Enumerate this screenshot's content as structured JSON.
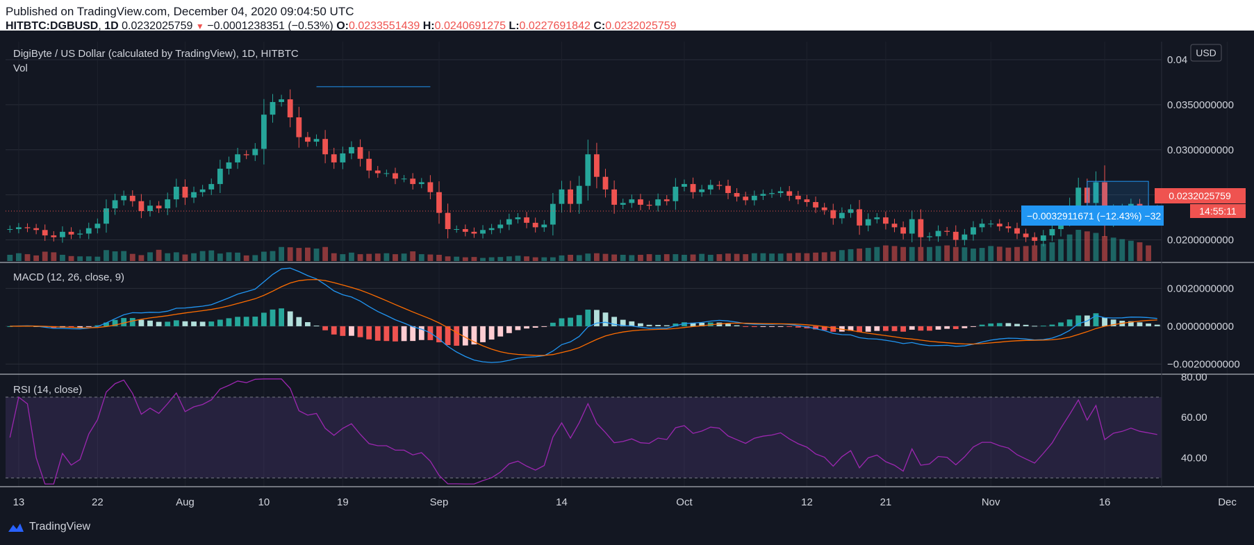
{
  "header": {
    "published": "Published on TradingView.com, December 04, 2020 09:04:50 UTC",
    "symbol": "HITBTC:DGBUSD",
    "interval": "1D",
    "price": "0.0232025759",
    "change": "−0.0001238351 (−0.53%)",
    "o_label": "O:",
    "o": "0.0233551439",
    "h_label": "H:",
    "h": "0.0240691275",
    "l_label": "L:",
    "l": "0.0227691842",
    "c_label": "C:",
    "c": "0.0232025759"
  },
  "main": {
    "title": "DigiByte / US Dollar (calculated by TradingView), 1D, HITBTC",
    "vol_label": "Vol",
    "currency": "USD",
    "last_price_tag": "0.0232025759",
    "countdown_tag": "14:55:11",
    "measure_label": "−0.0032911671 (−12.43%) −32"
  },
  "macd": {
    "label": "MACD (12, 26, close, 9)"
  },
  "rsi": {
    "label": "RSI (14, close)"
  },
  "footer": {
    "brand": "TradingView"
  },
  "colors": {
    "up": "#26a69a",
    "down": "#ef5350",
    "macd": "#2196f3",
    "signal": "#ff6d00",
    "rsi": "#9c27b0",
    "accent": "#2962ff"
  },
  "chart_data": [
    {
      "type": "candlestick",
      "title": "DigiByte / US Dollar (calculated by TradingView), 1D, HITBTC",
      "x_tick_labels": [
        "13",
        "22",
        "Aug",
        "10",
        "19",
        "Sep",
        "14",
        "Oct",
        "12",
        "21",
        "Nov",
        "16",
        "Dec"
      ],
      "y_tick_labels": [
        "0.04",
        "0.0350000000",
        "0.0300000000",
        "0.0250000000",
        "0.0200000000"
      ],
      "ylim": [
        0.0175,
        0.042
      ],
      "close": [
        0.0212,
        0.0214,
        0.0213,
        0.0211,
        0.0205,
        0.0203,
        0.0209,
        0.0206,
        0.0207,
        0.0213,
        0.0218,
        0.0235,
        0.0244,
        0.0249,
        0.0243,
        0.0232,
        0.0238,
        0.0235,
        0.0245,
        0.0259,
        0.0247,
        0.0253,
        0.0256,
        0.0262,
        0.0279,
        0.0286,
        0.0295,
        0.0294,
        0.0301,
        0.0339,
        0.0353,
        0.0356,
        0.0336,
        0.0314,
        0.0309,
        0.0312,
        0.0295,
        0.0286,
        0.0296,
        0.0303,
        0.029,
        0.0277,
        0.0274,
        0.0274,
        0.0268,
        0.0268,
        0.0262,
        0.0264,
        0.0253,
        0.023,
        0.0212,
        0.0212,
        0.0209,
        0.0207,
        0.0211,
        0.0213,
        0.0217,
        0.0223,
        0.0225,
        0.0219,
        0.0214,
        0.0217,
        0.024,
        0.0256,
        0.024,
        0.026,
        0.0295,
        0.027,
        0.0256,
        0.0239,
        0.0241,
        0.0245,
        0.0239,
        0.0238,
        0.0245,
        0.0243,
        0.0259,
        0.0262,
        0.0253,
        0.0256,
        0.0261,
        0.026,
        0.0252,
        0.0248,
        0.0244,
        0.0249,
        0.0251,
        0.0252,
        0.0254,
        0.0249,
        0.0245,
        0.0242,
        0.0236,
        0.0233,
        0.0224,
        0.023,
        0.0234,
        0.0216,
        0.0223,
        0.0225,
        0.0218,
        0.0214,
        0.0207,
        0.0223,
        0.0203,
        0.0204,
        0.021,
        0.0209,
        0.02,
        0.0206,
        0.0214,
        0.0218,
        0.0218,
        0.0215,
        0.0213,
        0.0207,
        0.0203,
        0.0199,
        0.0205,
        0.0212,
        0.0224,
        0.0238,
        0.0258,
        0.0241,
        0.0264,
        0.0222,
        0.0232,
        0.0235,
        0.024,
        0.0236,
        0.0234,
        0.0232
      ]
    },
    {
      "type": "bar",
      "title": "Vol",
      "values": [
        0.2,
        0.25,
        0.22,
        0.18,
        0.3,
        0.28,
        0.2,
        0.16,
        0.15,
        0.15,
        0.14,
        0.35,
        0.31,
        0.32,
        0.23,
        0.19,
        0.28,
        0.36,
        0.25,
        0.28,
        0.21,
        0.25,
        0.32,
        0.34,
        0.24,
        0.28,
        0.27,
        0.18,
        0.19,
        0.3,
        0.32,
        0.45,
        0.44,
        0.42,
        0.43,
        0.4,
        0.45,
        0.25,
        0.22,
        0.27,
        0.22,
        0.23,
        0.24,
        0.25,
        0.22,
        0.24,
        0.31,
        0.22,
        0.21,
        0.2,
        0.15,
        0.14,
        0.12,
        0.13,
        0.1,
        0.12,
        0.13,
        0.15,
        0.17,
        0.15,
        0.12,
        0.12,
        0.12,
        0.18,
        0.2,
        0.19,
        0.24,
        0.25,
        0.23,
        0.21,
        0.2,
        0.19,
        0.2,
        0.22,
        0.2,
        0.22,
        0.22,
        0.2,
        0.21,
        0.23,
        0.2,
        0.22,
        0.24,
        0.23,
        0.22,
        0.25,
        0.25,
        0.24,
        0.24,
        0.25,
        0.26,
        0.25,
        0.27,
        0.28,
        0.3,
        0.35,
        0.38,
        0.4,
        0.42,
        0.45,
        0.5,
        0.48,
        0.45,
        0.45,
        0.45,
        0.45,
        0.48,
        0.5,
        0.45,
        0.44,
        0.4,
        0.42,
        0.48,
        0.46,
        0.43,
        0.45,
        0.48,
        0.5,
        0.55,
        0.6,
        0.7,
        0.85,
        1.0,
        0.95,
        0.9,
        0.8,
        0.75,
        0.7,
        0.65,
        0.6,
        0.5
      ]
    },
    {
      "type": "line",
      "title": "MACD (12, 26, close, 9)",
      "y_tick_labels": [
        "0.0020000000",
        "0.0000000000",
        "−0.0020000000"
      ],
      "ylim": [
        -0.0025,
        0.0033
      ]
    },
    {
      "type": "line",
      "title": "RSI (14, close)",
      "y_tick_labels": [
        "80.00",
        "60.00",
        "40.00"
      ],
      "ylim": [
        26,
        81
      ],
      "bands": [
        30,
        70
      ]
    }
  ]
}
